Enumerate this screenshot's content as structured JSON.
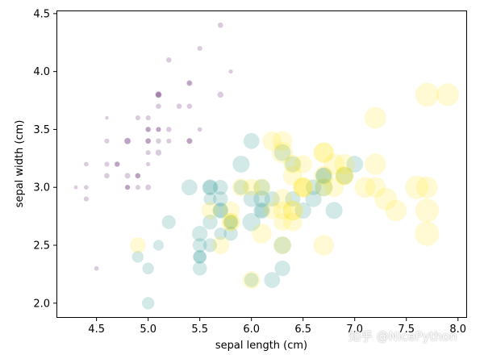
{
  "chart_data": {
    "type": "scatter",
    "xlabel": "sepal length (cm)",
    "ylabel": "sepal width (cm)",
    "xlim": [
      4.12,
      8.08
    ],
    "ylim": [
      1.88,
      4.52
    ],
    "xticks": [
      "4.5",
      "5.0",
      "5.5",
      "6.0",
      "6.5",
      "7.0",
      "7.5",
      "8.0"
    ],
    "yticks": [
      "2.0",
      "2.5",
      "3.0",
      "3.5",
      "4.0",
      "4.5"
    ],
    "grid": false,
    "alpha": 0.2,
    "size_variable": "petal length (cm)",
    "color_by_class": true,
    "colors": {
      "0": "#440154",
      "1": "#21918c",
      "2": "#fde725"
    },
    "points": [
      [
        5.1,
        3.5,
        1.4,
        0
      ],
      [
        4.9,
        3.0,
        1.4,
        0
      ],
      [
        4.7,
        3.2,
        1.3,
        0
      ],
      [
        4.6,
        3.1,
        1.5,
        0
      ],
      [
        5.0,
        3.6,
        1.4,
        0
      ],
      [
        5.4,
        3.9,
        1.7,
        0
      ],
      [
        4.6,
        3.4,
        1.4,
        0
      ],
      [
        5.0,
        3.4,
        1.5,
        0
      ],
      [
        4.4,
        2.9,
        1.4,
        0
      ],
      [
        4.9,
        3.1,
        1.5,
        0
      ],
      [
        5.4,
        3.7,
        1.5,
        0
      ],
      [
        4.8,
        3.4,
        1.6,
        0
      ],
      [
        4.8,
        3.0,
        1.4,
        0
      ],
      [
        4.3,
        3.0,
        1.1,
        0
      ],
      [
        5.8,
        4.0,
        1.2,
        0
      ],
      [
        5.7,
        4.4,
        1.5,
        0
      ],
      [
        5.4,
        3.9,
        1.3,
        0
      ],
      [
        5.1,
        3.5,
        1.4,
        0
      ],
      [
        5.7,
        3.8,
        1.7,
        0
      ],
      [
        5.1,
        3.8,
        1.5,
        0
      ],
      [
        5.4,
        3.4,
        1.7,
        0
      ],
      [
        5.1,
        3.7,
        1.5,
        0
      ],
      [
        4.6,
        3.6,
        1.0,
        0
      ],
      [
        5.1,
        3.3,
        1.7,
        0
      ],
      [
        4.8,
        3.4,
        1.9,
        0
      ],
      [
        5.0,
        3.0,
        1.6,
        0
      ],
      [
        5.0,
        3.4,
        1.6,
        0
      ],
      [
        5.2,
        3.5,
        1.5,
        0
      ],
      [
        5.2,
        3.4,
        1.4,
        0
      ],
      [
        4.7,
        3.2,
        1.6,
        0
      ],
      [
        4.8,
        3.1,
        1.6,
        0
      ],
      [
        5.4,
        3.4,
        1.5,
        0
      ],
      [
        5.2,
        4.1,
        1.5,
        0
      ],
      [
        5.5,
        4.2,
        1.4,
        0
      ],
      [
        4.9,
        3.1,
        1.5,
        0
      ],
      [
        5.0,
        3.2,
        1.2,
        0
      ],
      [
        5.5,
        3.5,
        1.3,
        0
      ],
      [
        4.9,
        3.6,
        1.4,
        0
      ],
      [
        4.4,
        3.0,
        1.3,
        0
      ],
      [
        5.1,
        3.4,
        1.5,
        0
      ],
      [
        5.0,
        3.5,
        1.3,
        0
      ],
      [
        4.5,
        2.3,
        1.3,
        0
      ],
      [
        4.4,
        3.2,
        1.3,
        0
      ],
      [
        5.0,
        3.5,
        1.6,
        0
      ],
      [
        5.1,
        3.8,
        1.9,
        0
      ],
      [
        4.8,
        3.0,
        1.4,
        0
      ],
      [
        5.1,
        3.8,
        1.6,
        0
      ],
      [
        4.6,
        3.2,
        1.4,
        0
      ],
      [
        5.3,
        3.7,
        1.5,
        0
      ],
      [
        5.0,
        3.3,
        1.4,
        0
      ],
      [
        7.0,
        3.2,
        4.7,
        1
      ],
      [
        6.4,
        3.2,
        4.5,
        1
      ],
      [
        6.9,
        3.1,
        4.9,
        1
      ],
      [
        5.5,
        2.3,
        4.0,
        1
      ],
      [
        6.5,
        2.8,
        4.6,
        1
      ],
      [
        5.7,
        2.8,
        4.5,
        1
      ],
      [
        6.3,
        3.3,
        4.7,
        1
      ],
      [
        4.9,
        2.4,
        3.3,
        1
      ],
      [
        6.6,
        2.9,
        4.6,
        1
      ],
      [
        5.2,
        2.7,
        3.9,
        1
      ],
      [
        5.0,
        2.0,
        3.5,
        1
      ],
      [
        5.9,
        3.0,
        4.2,
        1
      ],
      [
        6.0,
        2.2,
        4.0,
        1
      ],
      [
        6.1,
        2.9,
        4.7,
        1
      ],
      [
        5.6,
        2.9,
        3.6,
        1
      ],
      [
        6.7,
        3.1,
        4.4,
        1
      ],
      [
        5.6,
        3.0,
        4.5,
        1
      ],
      [
        5.8,
        2.7,
        4.1,
        1
      ],
      [
        6.2,
        2.2,
        4.5,
        1
      ],
      [
        5.6,
        2.5,
        3.9,
        1
      ],
      [
        5.9,
        3.2,
        4.8,
        1
      ],
      [
        6.1,
        2.8,
        4.0,
        1
      ],
      [
        6.3,
        2.5,
        4.9,
        1
      ],
      [
        6.1,
        2.8,
        4.7,
        1
      ],
      [
        6.4,
        2.9,
        4.3,
        1
      ],
      [
        6.6,
        3.0,
        4.4,
        1
      ],
      [
        6.8,
        2.8,
        4.8,
        1
      ],
      [
        6.7,
        3.0,
        5.0,
        1
      ],
      [
        6.0,
        2.9,
        4.5,
        1
      ],
      [
        5.7,
        2.6,
        3.5,
        1
      ],
      [
        5.5,
        2.4,
        3.8,
        1
      ],
      [
        5.5,
        2.4,
        3.7,
        1
      ],
      [
        5.8,
        2.7,
        3.9,
        1
      ],
      [
        6.0,
        2.7,
        5.1,
        1
      ],
      [
        5.4,
        3.0,
        4.5,
        1
      ],
      [
        6.0,
        3.4,
        4.5,
        1
      ],
      [
        6.7,
        3.1,
        4.7,
        1
      ],
      [
        6.3,
        2.3,
        4.4,
        1
      ],
      [
        5.6,
        3.0,
        4.1,
        1
      ],
      [
        5.5,
        2.5,
        4.0,
        1
      ],
      [
        5.5,
        2.6,
        4.4,
        1
      ],
      [
        6.1,
        3.0,
        4.6,
        1
      ],
      [
        5.8,
        2.6,
        4.0,
        1
      ],
      [
        5.0,
        2.3,
        3.3,
        1
      ],
      [
        5.6,
        2.7,
        4.2,
        1
      ],
      [
        5.7,
        3.0,
        4.2,
        1
      ],
      [
        5.7,
        2.9,
        4.2,
        1
      ],
      [
        6.2,
        2.9,
        4.3,
        1
      ],
      [
        5.1,
        2.5,
        3.0,
        1
      ],
      [
        5.7,
        2.8,
        4.1,
        1
      ],
      [
        6.3,
        3.3,
        6.0,
        2
      ],
      [
        5.8,
        2.7,
        5.1,
        2
      ],
      [
        7.1,
        3.0,
        5.9,
        2
      ],
      [
        6.3,
        2.9,
        5.6,
        2
      ],
      [
        6.5,
        3.0,
        5.8,
        2
      ],
      [
        7.6,
        3.0,
        6.6,
        2
      ],
      [
        4.9,
        2.5,
        4.5,
        2
      ],
      [
        7.3,
        2.9,
        6.3,
        2
      ],
      [
        6.7,
        2.5,
        5.8,
        2
      ],
      [
        7.2,
        3.6,
        6.1,
        2
      ],
      [
        6.5,
        3.2,
        5.1,
        2
      ],
      [
        6.4,
        2.7,
        5.3,
        2
      ],
      [
        6.8,
        3.0,
        5.5,
        2
      ],
      [
        5.7,
        2.5,
        5.0,
        2
      ],
      [
        5.8,
        2.8,
        5.1,
        2
      ],
      [
        6.4,
        3.2,
        5.3,
        2
      ],
      [
        6.5,
        3.0,
        5.5,
        2
      ],
      [
        7.7,
        3.8,
        6.7,
        2
      ],
      [
        7.7,
        2.6,
        6.9,
        2
      ],
      [
        6.0,
        2.2,
        5.0,
        2
      ],
      [
        6.9,
        3.2,
        5.7,
        2
      ],
      [
        5.6,
        2.8,
        4.9,
        2
      ],
      [
        7.7,
        2.8,
        6.7,
        2
      ],
      [
        6.3,
        2.7,
        4.9,
        2
      ],
      [
        6.7,
        3.3,
        5.7,
        2
      ],
      [
        7.2,
        3.2,
        6.0,
        2
      ],
      [
        6.2,
        2.8,
        4.8,
        2
      ],
      [
        6.1,
        3.0,
        4.9,
        2
      ],
      [
        6.4,
        2.8,
        5.6,
        2
      ],
      [
        7.2,
        3.0,
        5.8,
        2
      ],
      [
        7.4,
        2.8,
        6.1,
        2
      ],
      [
        7.9,
        3.8,
        6.4,
        2
      ],
      [
        6.4,
        2.8,
        5.6,
        2
      ],
      [
        6.3,
        2.8,
        5.1,
        2
      ],
      [
        6.1,
        2.6,
        5.6,
        2
      ],
      [
        7.7,
        3.0,
        6.1,
        2
      ],
      [
        6.3,
        3.4,
        5.6,
        2
      ],
      [
        6.4,
        3.1,
        5.5,
        2
      ],
      [
        6.0,
        3.0,
        4.8,
        2
      ],
      [
        6.9,
        3.1,
        5.4,
        2
      ],
      [
        6.7,
        3.1,
        5.6,
        2
      ],
      [
        6.9,
        3.1,
        5.1,
        2
      ],
      [
        5.8,
        2.7,
        5.1,
        2
      ],
      [
        6.8,
        3.2,
        5.9,
        2
      ],
      [
        6.7,
        3.3,
        5.7,
        2
      ],
      [
        6.7,
        3.0,
        5.2,
        2
      ],
      [
        6.3,
        2.5,
        5.0,
        2
      ],
      [
        6.5,
        3.0,
        5.2,
        2
      ],
      [
        6.2,
        3.4,
        5.4,
        2
      ],
      [
        5.9,
        3.0,
        5.1,
        2
      ]
    ]
  },
  "watermark": "知乎 @NicePython"
}
